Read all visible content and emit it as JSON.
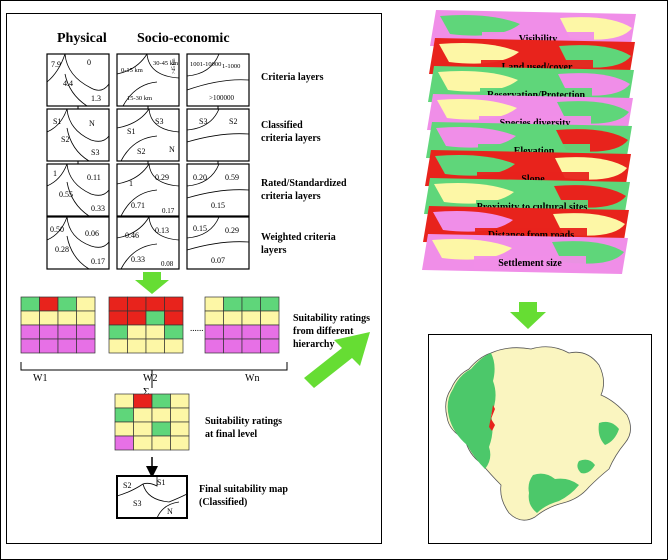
{
  "colors": {
    "green": "#5fd67a",
    "red": "#e8231c",
    "yellow": "#fdf7a6",
    "magenta": "#e770e6",
    "pink": "#f08ee8",
    "arrow": "#66dd33",
    "outline": "#333333",
    "map_cream": "#faf5c0",
    "map_green": "#4cc86a"
  },
  "columns": {
    "physical": "Physical",
    "socio": "Socio-economic"
  },
  "rows": [
    {
      "label1": "Criteria layers",
      "label2": ""
    },
    {
      "label1": "Classified",
      "label2": "criteria layers"
    },
    {
      "label1": "Rated/Standardized",
      "label2": "criteria layers"
    },
    {
      "label1": "Weighted criteria",
      "label2": "layers"
    }
  ],
  "boxes": {
    "r1": [
      [
        "7.9",
        "0",
        "4.4",
        "1.3"
      ],
      [
        "30-45 km",
        "0-15 km",
        "15-30 km",
        ">45 km"
      ],
      [
        "1001-10000",
        "1-1000",
        ">100000"
      ]
    ],
    "r2": [
      [
        "S1",
        "N",
        "S2",
        "S3"
      ],
      [
        "S1",
        "S3",
        "S2",
        "N"
      ],
      [
        "S3",
        "S2"
      ]
    ],
    "r3": [
      [
        "1",
        "0.11",
        "0.55",
        "0.33"
      ],
      [
        "1",
        "0.29",
        "0.71",
        "0.17"
      ],
      [
        "0.20",
        "0.59",
        "0.15"
      ]
    ],
    "r4": [
      [
        "0.50",
        "0.06",
        "0.28",
        "0.17"
      ],
      [
        "0.46",
        "0.13",
        "0.33",
        "0.08"
      ],
      [
        "0.15",
        "0.29",
        "0.07"
      ]
    ]
  },
  "ratings": {
    "label1": "Suitability ratings",
    "label2": "from different",
    "label3": "hierarchy",
    "w1": "W1",
    "w2": "W2",
    "wn": "Wn",
    "dots": "......",
    "sigma": "Σ"
  },
  "final_rating": {
    "label1": "Suitability ratings",
    "label2": "at final level"
  },
  "final_map": {
    "label1": "Final suitability map",
    "label2": "(Classified)",
    "classes": [
      "S2",
      "S1",
      "S3",
      "N"
    ]
  },
  "stack_layers": [
    "Visibility",
    "Land used/cover",
    "Reservation/Protection",
    "Species diversity",
    "Elevation",
    "Slope",
    "Proximity to cultural sites",
    "Distance from roads",
    "Settlement size"
  ]
}
